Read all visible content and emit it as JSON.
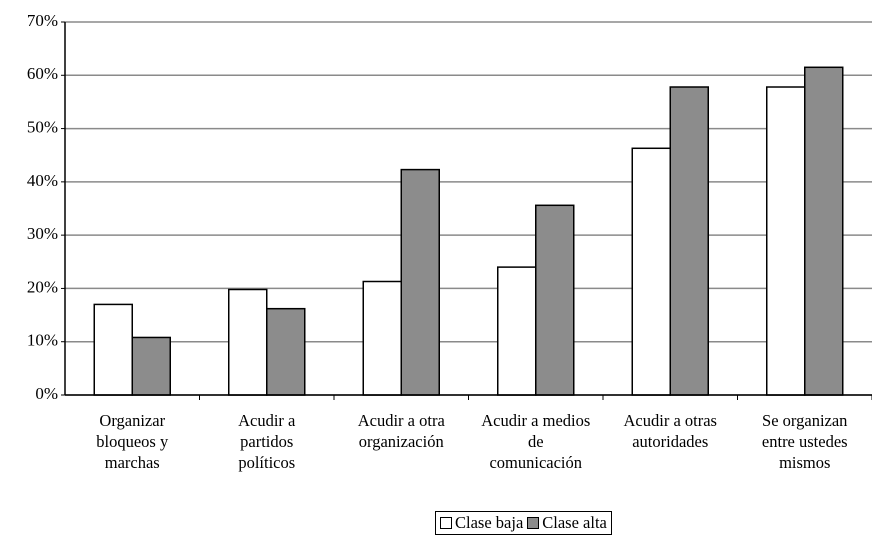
{
  "chart_data": {
    "type": "bar",
    "categories": [
      "Organizar bloqueos y marchas",
      "Acudir a partidos políticos",
      "Acudir a otra organización",
      "Acudir a medios de comunicación",
      "Acudir a otras autoridades",
      "Se organizan entre ustedes mismos"
    ],
    "series": [
      {
        "name": "Clase baja",
        "color": "#ffffff",
        "values": [
          17,
          19.8,
          21.3,
          24,
          46.3,
          57.8
        ]
      },
      {
        "name": "Clase alta",
        "color": "#8c8c8c",
        "values": [
          10.8,
          16.2,
          42.3,
          35.6,
          57.8,
          61.5
        ]
      }
    ],
    "ylim": [
      0,
      70
    ],
    "yticks": [
      {
        "value": 0,
        "label": "0%"
      },
      {
        "value": 10,
        "label": "10%"
      },
      {
        "value": 20,
        "label": "20%"
      },
      {
        "value": 30,
        "label": "30%"
      },
      {
        "value": 40,
        "label": "40%"
      },
      {
        "value": 50,
        "label": "50%"
      },
      {
        "value": 60,
        "label": "60%"
      },
      {
        "value": 70,
        "label": "70%"
      }
    ],
    "grid": true,
    "legend": "bottom"
  }
}
